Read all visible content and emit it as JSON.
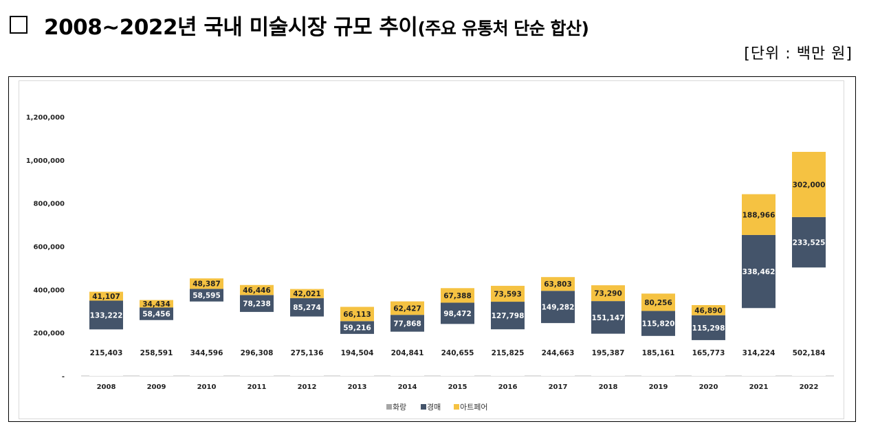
{
  "title": {
    "main": "2008~2022년 국내 미술시장 규모 추이",
    "sub": "(주요 유통처 단순 합산)",
    "unit": "[단위 : 백만 원]"
  },
  "colors": {
    "gallery": "#ffffff",
    "auction": "#44546a",
    "artfair": "#f5c242",
    "legend_gallery": "#a6a6a6"
  },
  "chart_data": {
    "type": "bar",
    "stacked": true,
    "categories": [
      "2008",
      "2009",
      "2010",
      "2011",
      "2012",
      "2013",
      "2014",
      "2015",
      "2016",
      "2017",
      "2018",
      "2019",
      "2020",
      "2021",
      "2022"
    ],
    "series": [
      {
        "name": "화랑",
        "values": [
          215403,
          258591,
          344596,
          296308,
          275136,
          194504,
          204841,
          240655,
          215825,
          244663,
          195387,
          185161,
          165773,
          314224,
          502184
        ]
      },
      {
        "name": "경매",
        "values": [
          133222,
          58456,
          58595,
          78238,
          85274,
          59216,
          77868,
          98472,
          127798,
          149282,
          151147,
          115820,
          115298,
          338462,
          233525
        ]
      },
      {
        "name": "아트페어",
        "values": [
          41107,
          34434,
          48387,
          46446,
          42021,
          66113,
          62427,
          67388,
          73593,
          63803,
          73290,
          80256,
          46890,
          188966,
          302000
        ]
      }
    ],
    "ylim": [
      0,
      1200000
    ],
    "yticks": [
      {
        "value": 0,
        "label": "-"
      },
      {
        "value": 200000,
        "label": "200,000"
      },
      {
        "value": 400000,
        "label": "400,000"
      },
      {
        "value": 600000,
        "label": "600,000"
      },
      {
        "value": 800000,
        "label": "800,000"
      },
      {
        "value": 1000000,
        "label": "1,000,000"
      },
      {
        "value": 1200000,
        "label": "1,200,000"
      }
    ],
    "legend_position": "bottom"
  }
}
